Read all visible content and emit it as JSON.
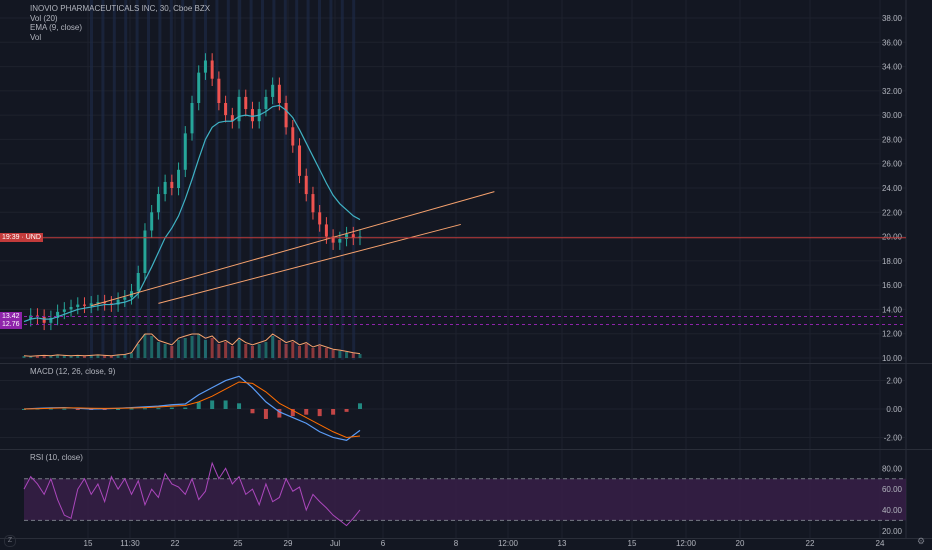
{
  "legend": {
    "title": "INOVIO PHARMACEUTICALS INC, 30, Cboe BZX",
    "vol": "Vol (20)",
    "ema": "EMA (9, close)",
    "vol2": "Vol",
    "macd": "MACD (12, 26, close, 9)",
    "rsi": "RSI (10, close)"
  },
  "price_tags": {
    "current": "19:39 · UND",
    "level1": "13.42",
    "level2": "12.76"
  },
  "icons": {
    "settings": "gear-icon",
    "timezone": "z-logo-icon"
  },
  "colors": {
    "background": "#131722",
    "grid": "#1e222d",
    "up": "#26a69a",
    "down": "#ef5350",
    "ema": "#3fb2c4",
    "trendline": "#f7a26e",
    "rsi": "#ab47bc",
    "rsi_band": "#3a1f4a",
    "macd_line": "#2962ff",
    "signal_line": "#ff6d00",
    "tag_red": "#c23b3b",
    "tag_purple": "#8e24aa"
  },
  "chart_data": [
    {
      "type": "line",
      "name": "price",
      "y_ticks": [
        "38.00",
        "36.00",
        "34.00",
        "32.00",
        "30.00",
        "28.00",
        "26.00",
        "24.00",
        "22.00",
        "20.00",
        "18.00",
        "16.00",
        "14.00",
        "12.00",
        "10.00"
      ],
      "ylim": [
        10,
        38
      ],
      "x_ticks": [
        "15",
        "11:30",
        "22",
        "25",
        "29",
        "Jul",
        "6",
        "8",
        "12:00",
        "13",
        "15",
        "12:00",
        "20",
        "22",
        "24"
      ],
      "x_values": [
        0,
        2,
        4,
        6,
        8,
        10,
        12,
        14,
        16,
        18,
        20,
        22,
        24,
        26,
        28,
        30,
        32,
        34,
        36,
        38,
        40,
        42,
        44,
        46,
        48,
        50,
        52,
        54,
        56,
        58,
        60,
        62,
        64,
        66,
        68,
        70,
        72,
        74,
        76,
        78,
        80,
        82,
        84,
        86,
        88,
        90,
        92,
        94,
        96,
        98,
        100
      ],
      "close": [
        13.2,
        13.5,
        13.4,
        12.9,
        13.3,
        13.8,
        14.0,
        14.2,
        14.4,
        14.3,
        14.5,
        14.6,
        14.5,
        14.4,
        14.8,
        15.0,
        15.5,
        17.0,
        20.5,
        22.0,
        23.5,
        24.5,
        24.0,
        25.5,
        28.5,
        31.0,
        33.5,
        34.5,
        33.0,
        31.0,
        30.0,
        29.5,
        31.5,
        30.5,
        29.5,
        30.5,
        31.5,
        32.5,
        31.0,
        29.0,
        27.5,
        25.0,
        23.5,
        22.0,
        21.0,
        20.0,
        19.5,
        19.8,
        20.2,
        19.9,
        20.0
      ],
      "ema": [
        13.0,
        13.2,
        13.3,
        13.2,
        13.2,
        13.4,
        13.6,
        13.8,
        14.0,
        14.1,
        14.2,
        14.3,
        14.4,
        14.4,
        14.5,
        14.6,
        14.8,
        15.3,
        16.4,
        17.5,
        18.7,
        19.9,
        20.7,
        21.7,
        23.1,
        24.7,
        26.4,
        28.0,
        29.0,
        29.4,
        29.5,
        29.5,
        29.9,
        30.0,
        29.9,
        30.0,
        30.3,
        30.7,
        30.8,
        30.4,
        29.8,
        28.8,
        27.7,
        26.6,
        25.5,
        24.4,
        23.4,
        22.7,
        22.2,
        21.7,
        21.4
      ],
      "volume_relative": [
        0.05,
        0.04,
        0.05,
        0.06,
        0.05,
        0.07,
        0.06,
        0.05,
        0.06,
        0.05,
        0.06,
        0.07,
        0.06,
        0.05,
        0.07,
        0.08,
        0.12,
        0.35,
        0.6,
        0.55,
        0.4,
        0.35,
        0.3,
        0.45,
        0.5,
        0.55,
        0.6,
        0.45,
        0.5,
        0.35,
        0.4,
        0.3,
        0.45,
        0.35,
        0.3,
        0.35,
        0.4,
        0.55,
        0.45,
        0.35,
        0.4,
        0.3,
        0.35,
        0.25,
        0.3,
        0.25,
        0.2,
        0.18,
        0.15,
        0.12,
        0.1
      ],
      "trendlines": [
        {
          "from": [
            20,
            14.3
          ],
          "to": [
            140,
            23.7
          ]
        },
        {
          "from": [
            40,
            14.5
          ],
          "to": [
            130,
            21.0
          ]
        }
      ],
      "horizontal_levels": [
        19.9,
        13.42,
        12.76
      ]
    },
    {
      "type": "line",
      "name": "macd",
      "y_ticks": [
        "2.00",
        "0.00",
        "-2.00"
      ],
      "ylim": [
        -2.6,
        2.6
      ],
      "x_values": [
        0,
        4,
        8,
        12,
        16,
        20,
        24,
        28,
        32,
        36,
        40,
        44,
        48,
        52,
        56,
        60,
        64,
        68,
        72,
        76,
        80,
        84,
        88,
        92,
        96,
        100
      ],
      "macd": [
        0.0,
        0.05,
        0.08,
        0.1,
        0.05,
        0.0,
        0.02,
        0.05,
        0.1,
        0.15,
        0.2,
        0.3,
        0.35,
        1.0,
        1.5,
        2.0,
        2.3,
        1.5,
        0.5,
        -0.2,
        -0.6,
        -1.0,
        -1.6,
        -2.0,
        -2.2,
        -1.5
      ],
      "signal": [
        0.0,
        0.02,
        0.05,
        0.08,
        0.08,
        0.05,
        0.04,
        0.05,
        0.07,
        0.1,
        0.14,
        0.2,
        0.25,
        0.5,
        0.9,
        1.4,
        1.9,
        1.8,
        1.2,
        0.4,
        -0.1,
        -0.6,
        -1.1,
        -1.6,
        -2.0,
        -1.9
      ]
    },
    {
      "type": "line",
      "name": "rsi",
      "y_ticks": [
        "80.00",
        "60.00",
        "40.00",
        "20.00"
      ],
      "ylim": [
        15,
        88
      ],
      "band": [
        30,
        70
      ],
      "x_values": [
        0,
        2,
        4,
        6,
        8,
        10,
        12,
        14,
        16,
        18,
        20,
        22,
        24,
        26,
        28,
        30,
        32,
        34,
        36,
        38,
        40,
        42,
        44,
        46,
        48,
        50,
        52,
        54,
        56,
        58,
        60,
        62,
        64,
        66,
        68,
        70,
        72,
        74,
        76,
        78,
        80,
        82,
        84,
        86,
        88,
        90,
        92,
        94,
        96,
        98,
        100
      ],
      "rsi": [
        60,
        72,
        65,
        55,
        70,
        50,
        35,
        32,
        60,
        70,
        55,
        65,
        48,
        72,
        60,
        70,
        55,
        68,
        45,
        60,
        52,
        75,
        65,
        62,
        55,
        70,
        50,
        58,
        85,
        70,
        80,
        65,
        72,
        55,
        60,
        45,
        65,
        48,
        52,
        70,
        58,
        62,
        40,
        55,
        48,
        42,
        35,
        30,
        25,
        32,
        40
      ]
    }
  ]
}
